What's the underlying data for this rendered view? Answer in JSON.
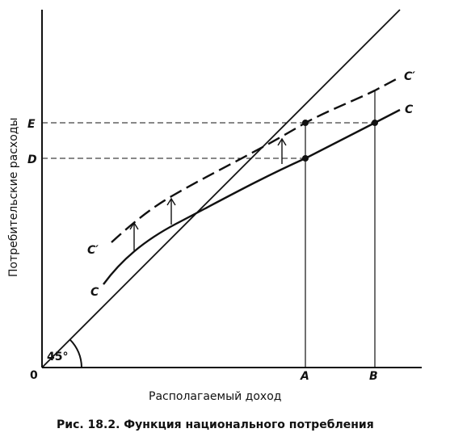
{
  "figure": {
    "caption": "Рис. 18.2. Функция национального потребления",
    "x_axis_label": "Располагаемый доход",
    "y_axis_label": "Потребительские расходы",
    "origin_label": "0",
    "angle_label": "45°",
    "x_ticks": [
      "A",
      "B"
    ],
    "y_ticks": [
      "E",
      "D"
    ],
    "curves": {
      "original": "C",
      "shifted": "C′"
    }
  }
}
